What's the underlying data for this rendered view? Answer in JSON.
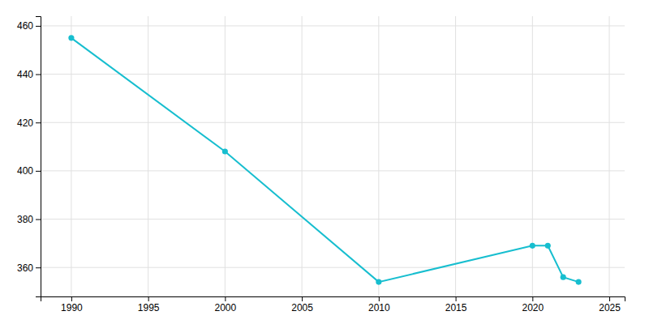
{
  "chart_data": {
    "type": "line",
    "x": [
      1990,
      2000,
      2010,
      2020,
      2021,
      2022,
      2023
    ],
    "values": [
      455,
      408,
      354,
      369,
      369,
      356,
      354
    ],
    "color": "#17becf",
    "marker": "circle",
    "xlim": [
      1988,
      2026
    ],
    "ylim": [
      348,
      464
    ],
    "xticks": [
      1990,
      1995,
      2000,
      2005,
      2010,
      2015,
      2020,
      2025
    ],
    "yticks": [
      360,
      380,
      400,
      420,
      440,
      460
    ],
    "grid": true
  }
}
